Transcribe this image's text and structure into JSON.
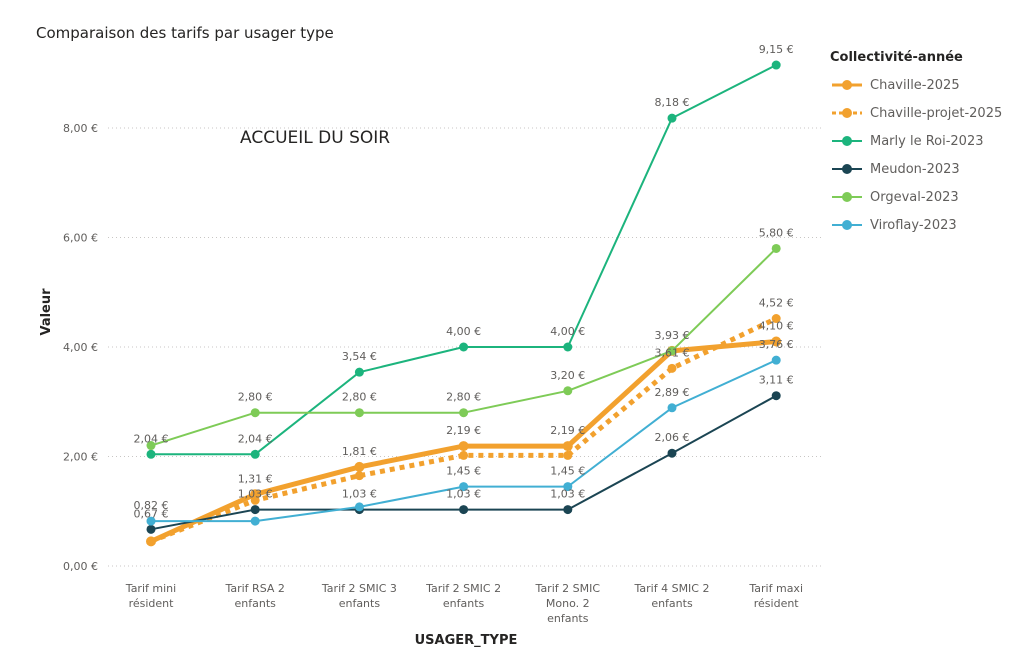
{
  "header": {
    "title": "Comparaison des tarifs par usager type"
  },
  "annotation": "ACCUEIL DU SOIR",
  "legend": {
    "title": "Collectivité-année"
  },
  "chart_data": {
    "type": "line",
    "title": "Comparaison des tarifs par usager type",
    "xlabel": "USAGER_TYPE",
    "ylabel": "Valeur",
    "ylim": [
      0,
      9.5
    ],
    "yticks": [
      0,
      2,
      4,
      6,
      8
    ],
    "ytick_labels": [
      "0,00 €",
      "2,00 €",
      "4,00 €",
      "6,00 €",
      "8,00 €"
    ],
    "grid": true,
    "legend_position": "right",
    "categories": [
      [
        "Tarif mini",
        "résident"
      ],
      [
        "Tarif RSA 2",
        "enfants"
      ],
      [
        "Tarif 2 SMIC 3",
        "enfants"
      ],
      [
        "Tarif 2 SMIC 2",
        "enfants"
      ],
      [
        "Tarif 2 SMIC",
        "Mono. 2",
        "enfants"
      ],
      [
        "Tarif 4 SMIC 2",
        "enfants"
      ],
      [
        "Tarif maxi",
        "résident"
      ]
    ],
    "series": [
      {
        "name": "Chaville-2025",
        "color": "#F2A12E",
        "style": "solid-thick",
        "values": [
          0.45,
          1.31,
          1.81,
          2.19,
          2.19,
          3.93,
          4.1
        ],
        "labels": [
          "",
          "1,31 €",
          "1,81 €",
          "2,19 €",
          "2,19 €",
          "3,93 €",
          "4,10 €"
        ]
      },
      {
        "name": "Chaville-projet-2025",
        "color": "#F2A12E",
        "style": "dotted",
        "values": [
          0.45,
          1.2,
          1.65,
          2.02,
          2.02,
          3.61,
          4.52
        ],
        "labels": [
          "",
          "",
          "",
          "",
          "",
          "3,61 €",
          "4,52 €"
        ]
      },
      {
        "name": "Marly le Roi-2023",
        "color": "#1CB47D",
        "style": "solid",
        "values": [
          2.04,
          2.04,
          3.54,
          4.0,
          4.0,
          8.18,
          9.15
        ],
        "labels": [
          "2,04 €",
          "2,04 €",
          "3,54 €",
          "4,00 €",
          "4,00 €",
          "8,18 €",
          "9,15 €"
        ]
      },
      {
        "name": "Meudon-2023",
        "color": "#1B4553",
        "style": "solid",
        "values": [
          0.67,
          1.03,
          1.03,
          1.03,
          1.03,
          2.06,
          3.11
        ],
        "labels": [
          "0,67 €",
          "1,03 €",
          "1,03 €",
          "1,03 €",
          "1,03 €",
          "2,06 €",
          "3,11 €"
        ]
      },
      {
        "name": "Orgeval-2023",
        "color": "#7ECB57",
        "style": "solid",
        "values": [
          2.2,
          2.8,
          2.8,
          2.8,
          3.2,
          3.93,
          5.8
        ],
        "labels": [
          "",
          "2,80 €",
          "2,80 €",
          "2,80 €",
          "3,20 €",
          "",
          "5,80 €"
        ]
      },
      {
        "name": "Viroflay-2023",
        "color": "#41AFD3",
        "style": "solid",
        "values": [
          0.82,
          0.82,
          1.08,
          1.45,
          1.45,
          2.89,
          3.76
        ],
        "labels": [
          "0,82 €",
          "",
          "",
          "1,45 €",
          "1,45 €",
          "2,89 €",
          "3,76 €"
        ]
      }
    ]
  }
}
